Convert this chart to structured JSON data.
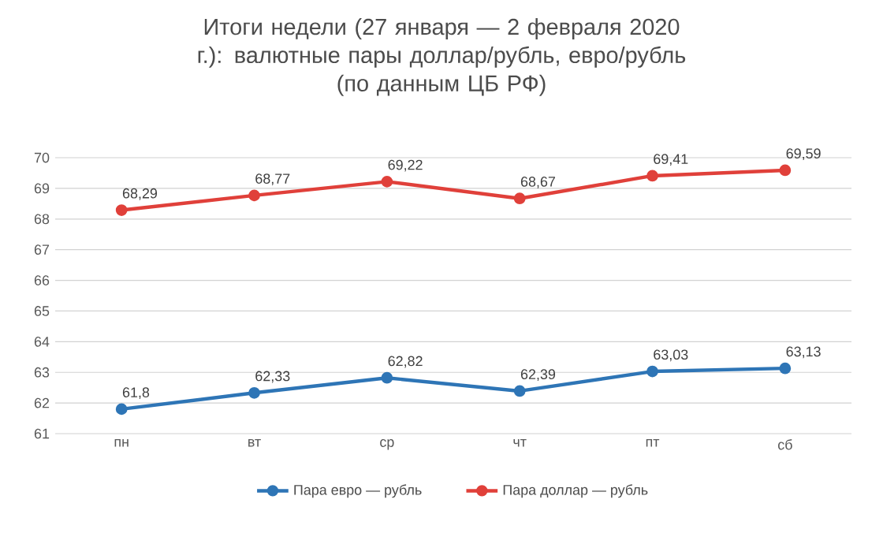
{
  "chart_data": {
    "type": "line",
    "title": "Итоги недели (27 января — 2 февраля 2020 г.): валютные пары доллар/рубль, евро/рубль",
    "subtitle": "(по данным ЦБ РФ)",
    "categories": [
      "пн",
      "вт",
      "ср",
      "чт",
      "пт",
      "сб"
    ],
    "series": [
      {
        "name": "Пара евро — рубль",
        "color": "#2e75b6",
        "values": [
          61.8,
          62.33,
          62.82,
          62.39,
          63.03,
          63.13
        ],
        "value_labels": [
          "61,8",
          "62,33",
          "62,82",
          "62,39",
          "63,03",
          "63,13"
        ]
      },
      {
        "name": "Пара доллар — рубль",
        "color": "#e0403a",
        "values": [
          68.29,
          68.77,
          69.22,
          68.67,
          69.41,
          69.59
        ],
        "value_labels": [
          "68,29",
          "68,77",
          "69,22",
          "68,67",
          "69,41",
          "69,59"
        ]
      }
    ],
    "ylim": [
      61,
      70
    ],
    "yticks": [
      61,
      62,
      63,
      64,
      65,
      66,
      67,
      68,
      69,
      70
    ],
    "grid": "y",
    "legend": "bottom",
    "marker": "circle",
    "line_style": "solid"
  }
}
